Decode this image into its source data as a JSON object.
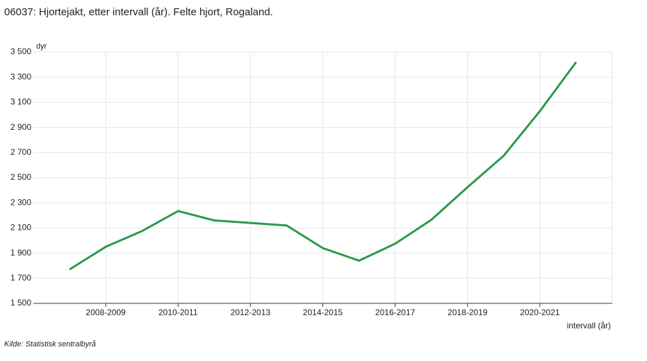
{
  "chart_data": {
    "type": "line",
    "title": "06037: Hjortejakt, etter intervall (år). Felte hjort, Rogaland.",
    "y_label": "dyr",
    "x_label": "intervall (år)",
    "source": "Kilde:  Statistisk sentralbyrå",
    "categories": [
      null,
      "2008-2009",
      null,
      "2010-2011",
      null,
      "2012-2013",
      null,
      "2014-2015",
      null,
      "2016-2017",
      null,
      "2018-2019",
      null,
      "2020-2021",
      null
    ],
    "series": [
      {
        "name": "Felte hjort",
        "color": "#2b9a48",
        "values": [
          1770,
          1950,
          2075,
          2235,
          2160,
          2140,
          2120,
          1940,
          1840,
          1975,
          2165,
          2425,
          2675,
          3030,
          3420
        ]
      }
    ],
    "ylim": [
      1500,
      3500
    ],
    "yticks": [
      {
        "value": 1500,
        "label": "1 500"
      },
      {
        "value": 1700,
        "label": "1 700"
      },
      {
        "value": 1900,
        "label": "1 900"
      },
      {
        "value": 2100,
        "label": "2 100"
      },
      {
        "value": 2300,
        "label": "2 300"
      },
      {
        "value": 2500,
        "label": "2 500"
      },
      {
        "value": 2700,
        "label": "2 700"
      },
      {
        "value": 2900,
        "label": "2 900"
      },
      {
        "value": 3100,
        "label": "3 100"
      },
      {
        "value": 3300,
        "label": "3 300"
      },
      {
        "value": 3500,
        "label": "3 500"
      }
    ],
    "grid": true
  }
}
